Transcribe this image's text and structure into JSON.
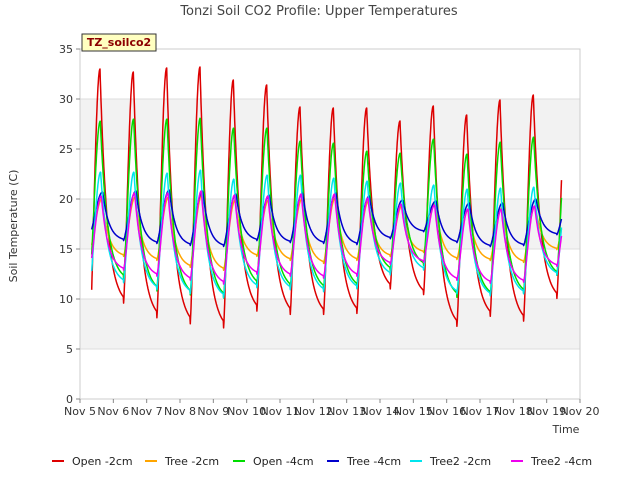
{
  "chart_data": {
    "type": "line",
    "title": "Tonzi Soil CO2 Profile: Upper Temperatures",
    "xlabel": "Time",
    "ylabel": "Soil Temperature (C)",
    "site_label": "TZ_soilco2",
    "xlim": [
      5,
      20
    ],
    "ylim": [
      0,
      35
    ],
    "x_ticks": [
      5,
      6,
      7,
      8,
      9,
      10,
      11,
      12,
      13,
      14,
      15,
      16,
      17,
      18,
      19,
      20
    ],
    "x_tick_labels": [
      "Nov 5",
      "Nov 6",
      "Nov 7",
      "Nov 8",
      "Nov 9",
      "Nov 10",
      "Nov 11",
      "Nov 12",
      "Nov 13",
      "Nov 14",
      "Nov 15",
      "Nov 16",
      "Nov 17",
      "Nov 18",
      "Nov 19",
      "Nov 20"
    ],
    "y_ticks": [
      0,
      5,
      10,
      15,
      20,
      25,
      30,
      35
    ],
    "grid": "horizontal bands",
    "legend_position": "bottom",
    "colors": {
      "Open -2cm": "#dd0000",
      "Tree -2cm": "#ffa500",
      "Open -4cm": "#00dd00",
      "Tree -4cm": "#0000cc",
      "Tree2 -2cm": "#00e5ee",
      "Tree2 -4cm": "#ee00ee"
    },
    "days": [
      5,
      6,
      7,
      8,
      9,
      10,
      11,
      12,
      13,
      14,
      15,
      16,
      17,
      18,
      19
    ],
    "series": [
      {
        "name": "Open -2cm",
        "daily_min": [
          7.0,
          9.3,
          7.8,
          7.2,
          6.8,
          8.5,
          8.2,
          8.2,
          8.3,
          10.8,
          10.2,
          7.0,
          8.0,
          7.5,
          9.8
        ],
        "daily_max": [
          33.0,
          32.7,
          33.1,
          33.2,
          31.9,
          31.4,
          29.2,
          29.1,
          29.1,
          27.8,
          29.3,
          28.4,
          29.9,
          30.4
        ]
      },
      {
        "name": "Tree -2cm",
        "daily_min": [
          14.8,
          14.2,
          13.8,
          13.1,
          12.8,
          14.2,
          13.8,
          13.5,
          13.8,
          14.2,
          14.6,
          13.9,
          13.8,
          13.6,
          14.9
        ],
        "daily_max": [
          20.0,
          20.2,
          20.2,
          20.4,
          19.9,
          19.9,
          20.0,
          20.1,
          19.8,
          19.3,
          19.6,
          19.0,
          19.1,
          19.3
        ]
      },
      {
        "name": "Open -4cm",
        "daily_min": [
          12.2,
          11.8,
          10.6,
          10.2,
          9.9,
          11.2,
          10.9,
          10.8,
          11.0,
          12.7,
          13.2,
          10.0,
          10.2,
          10.4,
          12.2
        ],
        "daily_max": [
          27.8,
          28.0,
          28.0,
          28.1,
          27.1,
          27.1,
          25.8,
          25.6,
          24.8,
          24.6,
          26.0,
          24.5,
          25.7,
          26.2
        ]
      },
      {
        "name": "Tree -4cm",
        "daily_min": [
          16.5,
          15.8,
          15.5,
          15.3,
          15.2,
          15.8,
          15.6,
          15.5,
          15.4,
          16.0,
          16.7,
          15.6,
          15.2,
          15.3,
          16.4
        ],
        "daily_max": [
          20.7,
          20.8,
          20.9,
          20.8,
          20.5,
          20.4,
          20.6,
          20.6,
          20.3,
          19.9,
          19.8,
          19.6,
          19.6,
          20.0
        ]
      },
      {
        "name": "Tree2 -2cm",
        "daily_min": [
          11.2,
          11.5,
          10.8,
          10.4,
          10.0,
          11.0,
          10.8,
          10.6,
          10.9,
          12.3,
          12.8,
          10.4,
          10.2,
          10.4,
          12.3
        ],
        "daily_max": [
          22.7,
          22.7,
          22.6,
          22.9,
          22.0,
          22.4,
          22.4,
          22.1,
          21.8,
          21.6,
          21.4,
          21.0,
          21.1,
          21.2
        ]
      },
      {
        "name": "Tree2 -4cm",
        "daily_min": [
          13.2,
          12.8,
          12.2,
          11.8,
          11.4,
          12.4,
          12.2,
          12.0,
          12.2,
          13.4,
          13.6,
          11.8,
          11.5,
          11.6,
          13.2
        ],
        "daily_max": [
          20.3,
          20.6,
          20.6,
          20.8,
          20.4,
          20.3,
          20.5,
          20.5,
          20.1,
          19.5,
          19.4,
          19.0,
          19.0,
          19.3
        ]
      }
    ]
  }
}
